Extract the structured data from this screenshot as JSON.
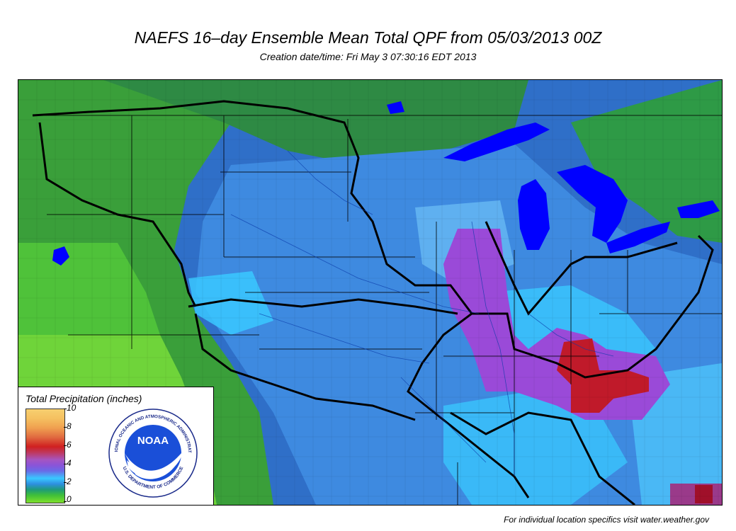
{
  "header": {
    "title": "NAEFS 16–day Ensemble Mean Total QPF from 05/03/2013 00Z",
    "subtitle": "Creation date/time: Fri May  3 07:30:16 EDT 2013"
  },
  "legend": {
    "title": "Total Precipitation (inches)",
    "ticks": [
      "10",
      "8",
      "6",
      "4",
      "2",
      "0"
    ]
  },
  "logo": {
    "top_text": "NATIONAL OCEANIC AND ATMOSPHERIC ADMINISTRATION",
    "bottom_text": "U.S. DEPARTMENT OF COMMERCE",
    "center_text": "NOAA"
  },
  "footer": {
    "text": "For individual location specifics visit water.weather.gov"
  },
  "colors": {
    "green": "#3fae3c",
    "light_green": "#6fd43a",
    "blue": "#3a7fd0",
    "cyan": "#39c8ff",
    "purple": "#a04fd0",
    "red": "#c01a2a",
    "lake": "#0000ff"
  }
}
